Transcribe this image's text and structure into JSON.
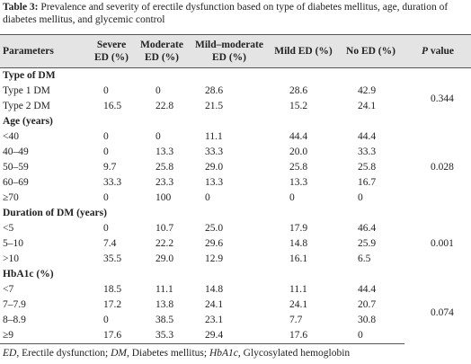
{
  "caption": {
    "label": "Table 3:",
    "text": "Prevalence and severity of erectile dysfunction based on type of diabetes mellitus, age, duration of diabetes mellitus, and glycemic control"
  },
  "table": {
    "header": {
      "parameters": "Parameters",
      "columns": [
        "Severe ED (%)",
        "Moderate ED (%)",
        "Mild–moderate ED (%)",
        "Mild ED (%)",
        "No ED (%)"
      ],
      "p_italic": "P",
      "p_text": " value"
    },
    "sections": [
      {
        "title": "Type of DM",
        "p_value": "0.344",
        "rows": [
          {
            "label": "Type 1 DM",
            "values": [
              "0",
              "0",
              "28.6",
              "28.6",
              "42.9"
            ]
          },
          {
            "label": "Type 2 DM",
            "values": [
              "16.5",
              "22.8",
              "21.5",
              "15.2",
              "24.1"
            ]
          }
        ]
      },
      {
        "title": "Age (years)",
        "p_value": "0.028",
        "rows": [
          {
            "label": "<40",
            "values": [
              "0",
              "0",
              "11.1",
              "44.4",
              "44.4"
            ]
          },
          {
            "label": "40–49",
            "values": [
              "0",
              "13.3",
              "33.3",
              "20.0",
              "33.3"
            ]
          },
          {
            "label": "50–59",
            "values": [
              "9.7",
              "25.8",
              "29.0",
              "25.8",
              "25.8"
            ]
          },
          {
            "label": "60–69",
            "values": [
              "33.3",
              "23.3",
              "13.3",
              "13.3",
              "16.7"
            ]
          },
          {
            "label": "≥70",
            "values": [
              "0",
              "100",
              "0",
              "0",
              "0"
            ]
          }
        ]
      },
      {
        "title": "Duration of DM (years)",
        "p_value": "0.001",
        "rows": [
          {
            "label": "<5",
            "values": [
              "0",
              "10.7",
              "25.0",
              "17.9",
              "46.4"
            ]
          },
          {
            "label": "5–10",
            "values": [
              "7.4",
              "22.2",
              "29.6",
              "14.8",
              "25.9"
            ]
          },
          {
            "label": ">10",
            "values": [
              "35.5",
              "29.0",
              "12.9",
              "16.1",
              "6.5"
            ]
          }
        ]
      },
      {
        "title": "HbA1c (%)",
        "p_value": "0.074",
        "rows": [
          {
            "label": "<7",
            "values": [
              "18.5",
              "11.1",
              "14.8",
              "11.1",
              "44.4"
            ]
          },
          {
            "label": "7–7.9",
            "values": [
              "17.2",
              "13.8",
              "24.1",
              "24.1",
              "20.7"
            ]
          },
          {
            "label": "8–8.9",
            "values": [
              "0",
              "38.5",
              "23.1",
              "7.7",
              "30.8"
            ]
          },
          {
            "label": "≥9",
            "values": [
              "17.6",
              "35.3",
              "29.4",
              "17.6",
              "0"
            ]
          }
        ]
      }
    ]
  },
  "footnote": [
    {
      "abbr": "ED",
      "def": ", Erectile dysfunction; "
    },
    {
      "abbr": "DM",
      "def": ", Diabetes mellitus; "
    },
    {
      "abbr": "HbA1c",
      "def": ", Glycosylated hemoglobin"
    }
  ]
}
